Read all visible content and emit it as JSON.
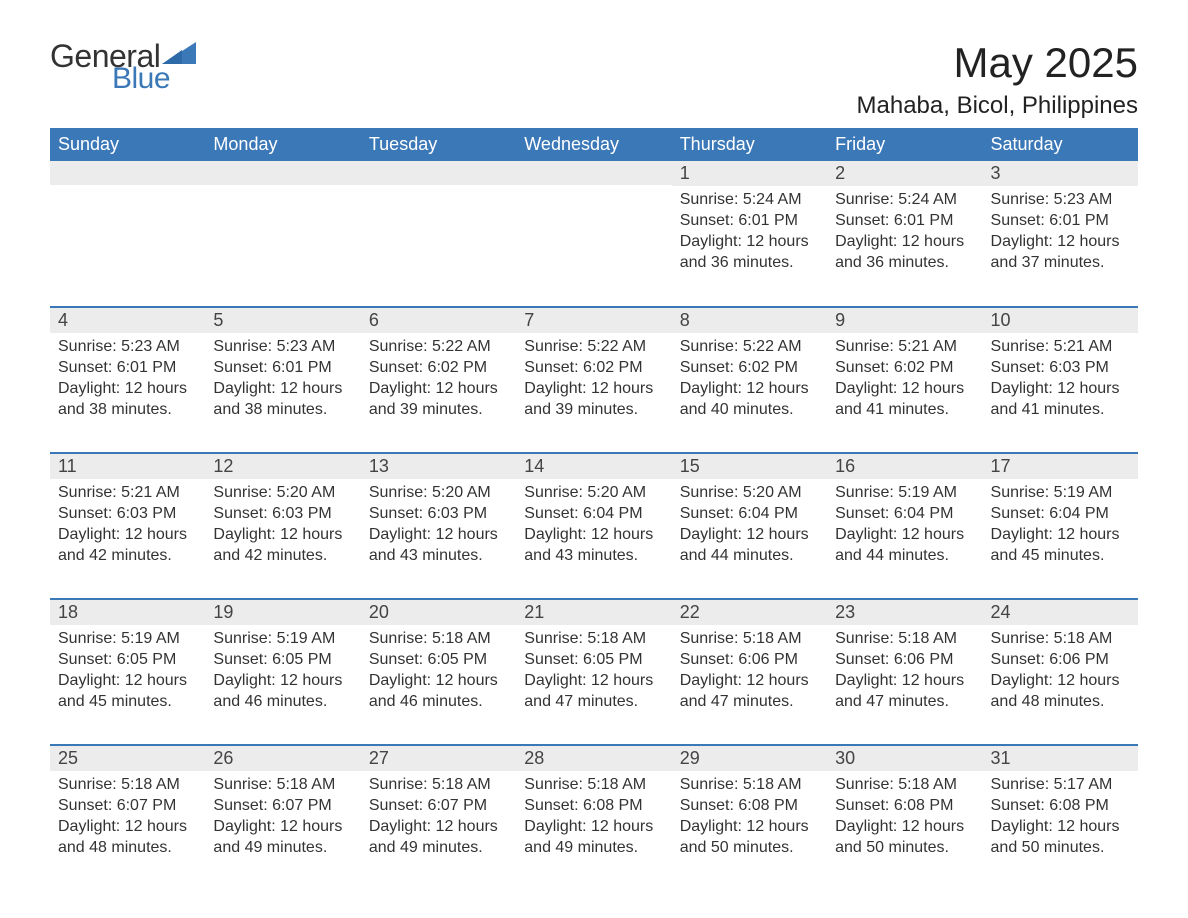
{
  "logo": {
    "text_general": "General",
    "text_blue": "Blue",
    "shape_color": "#3b78b8"
  },
  "title": "May 2025",
  "location": "Mahaba, Bicol, Philippines",
  "colors": {
    "header_bg": "#3b78b8",
    "header_text": "#ffffff",
    "daynum_bg": "#ececec",
    "body_text": "#333333",
    "rule": "#3b78b8"
  },
  "weekdays": [
    "Sunday",
    "Monday",
    "Tuesday",
    "Wednesday",
    "Thursday",
    "Friday",
    "Saturday"
  ],
  "weeks": [
    [
      null,
      null,
      null,
      null,
      {
        "day": "1",
        "sunrise": "Sunrise: 5:24 AM",
        "sunset": "Sunset: 6:01 PM",
        "daylight": "Daylight: 12 hours and 36 minutes."
      },
      {
        "day": "2",
        "sunrise": "Sunrise: 5:24 AM",
        "sunset": "Sunset: 6:01 PM",
        "daylight": "Daylight: 12 hours and 36 minutes."
      },
      {
        "day": "3",
        "sunrise": "Sunrise: 5:23 AM",
        "sunset": "Sunset: 6:01 PM",
        "daylight": "Daylight: 12 hours and 37 minutes."
      }
    ],
    [
      {
        "day": "4",
        "sunrise": "Sunrise: 5:23 AM",
        "sunset": "Sunset: 6:01 PM",
        "daylight": "Daylight: 12 hours and 38 minutes."
      },
      {
        "day": "5",
        "sunrise": "Sunrise: 5:23 AM",
        "sunset": "Sunset: 6:01 PM",
        "daylight": "Daylight: 12 hours and 38 minutes."
      },
      {
        "day": "6",
        "sunrise": "Sunrise: 5:22 AM",
        "sunset": "Sunset: 6:02 PM",
        "daylight": "Daylight: 12 hours and 39 minutes."
      },
      {
        "day": "7",
        "sunrise": "Sunrise: 5:22 AM",
        "sunset": "Sunset: 6:02 PM",
        "daylight": "Daylight: 12 hours and 39 minutes."
      },
      {
        "day": "8",
        "sunrise": "Sunrise: 5:22 AM",
        "sunset": "Sunset: 6:02 PM",
        "daylight": "Daylight: 12 hours and 40 minutes."
      },
      {
        "day": "9",
        "sunrise": "Sunrise: 5:21 AM",
        "sunset": "Sunset: 6:02 PM",
        "daylight": "Daylight: 12 hours and 41 minutes."
      },
      {
        "day": "10",
        "sunrise": "Sunrise: 5:21 AM",
        "sunset": "Sunset: 6:03 PM",
        "daylight": "Daylight: 12 hours and 41 minutes."
      }
    ],
    [
      {
        "day": "11",
        "sunrise": "Sunrise: 5:21 AM",
        "sunset": "Sunset: 6:03 PM",
        "daylight": "Daylight: 12 hours and 42 minutes."
      },
      {
        "day": "12",
        "sunrise": "Sunrise: 5:20 AM",
        "sunset": "Sunset: 6:03 PM",
        "daylight": "Daylight: 12 hours and 42 minutes."
      },
      {
        "day": "13",
        "sunrise": "Sunrise: 5:20 AM",
        "sunset": "Sunset: 6:03 PM",
        "daylight": "Daylight: 12 hours and 43 minutes."
      },
      {
        "day": "14",
        "sunrise": "Sunrise: 5:20 AM",
        "sunset": "Sunset: 6:04 PM",
        "daylight": "Daylight: 12 hours and 43 minutes."
      },
      {
        "day": "15",
        "sunrise": "Sunrise: 5:20 AM",
        "sunset": "Sunset: 6:04 PM",
        "daylight": "Daylight: 12 hours and 44 minutes."
      },
      {
        "day": "16",
        "sunrise": "Sunrise: 5:19 AM",
        "sunset": "Sunset: 6:04 PM",
        "daylight": "Daylight: 12 hours and 44 minutes."
      },
      {
        "day": "17",
        "sunrise": "Sunrise: 5:19 AM",
        "sunset": "Sunset: 6:04 PM",
        "daylight": "Daylight: 12 hours and 45 minutes."
      }
    ],
    [
      {
        "day": "18",
        "sunrise": "Sunrise: 5:19 AM",
        "sunset": "Sunset: 6:05 PM",
        "daylight": "Daylight: 12 hours and 45 minutes."
      },
      {
        "day": "19",
        "sunrise": "Sunrise: 5:19 AM",
        "sunset": "Sunset: 6:05 PM",
        "daylight": "Daylight: 12 hours and 46 minutes."
      },
      {
        "day": "20",
        "sunrise": "Sunrise: 5:18 AM",
        "sunset": "Sunset: 6:05 PM",
        "daylight": "Daylight: 12 hours and 46 minutes."
      },
      {
        "day": "21",
        "sunrise": "Sunrise: 5:18 AM",
        "sunset": "Sunset: 6:05 PM",
        "daylight": "Daylight: 12 hours and 47 minutes."
      },
      {
        "day": "22",
        "sunrise": "Sunrise: 5:18 AM",
        "sunset": "Sunset: 6:06 PM",
        "daylight": "Daylight: 12 hours and 47 minutes."
      },
      {
        "day": "23",
        "sunrise": "Sunrise: 5:18 AM",
        "sunset": "Sunset: 6:06 PM",
        "daylight": "Daylight: 12 hours and 47 minutes."
      },
      {
        "day": "24",
        "sunrise": "Sunrise: 5:18 AM",
        "sunset": "Sunset: 6:06 PM",
        "daylight": "Daylight: 12 hours and 48 minutes."
      }
    ],
    [
      {
        "day": "25",
        "sunrise": "Sunrise: 5:18 AM",
        "sunset": "Sunset: 6:07 PM",
        "daylight": "Daylight: 12 hours and 48 minutes."
      },
      {
        "day": "26",
        "sunrise": "Sunrise: 5:18 AM",
        "sunset": "Sunset: 6:07 PM",
        "daylight": "Daylight: 12 hours and 49 minutes."
      },
      {
        "day": "27",
        "sunrise": "Sunrise: 5:18 AM",
        "sunset": "Sunset: 6:07 PM",
        "daylight": "Daylight: 12 hours and 49 minutes."
      },
      {
        "day": "28",
        "sunrise": "Sunrise: 5:18 AM",
        "sunset": "Sunset: 6:08 PM",
        "daylight": "Daylight: 12 hours and 49 minutes."
      },
      {
        "day": "29",
        "sunrise": "Sunrise: 5:18 AM",
        "sunset": "Sunset: 6:08 PM",
        "daylight": "Daylight: 12 hours and 50 minutes."
      },
      {
        "day": "30",
        "sunrise": "Sunrise: 5:18 AM",
        "sunset": "Sunset: 6:08 PM",
        "daylight": "Daylight: 12 hours and 50 minutes."
      },
      {
        "day": "31",
        "sunrise": "Sunrise: 5:17 AM",
        "sunset": "Sunset: 6:08 PM",
        "daylight": "Daylight: 12 hours and 50 minutes."
      }
    ]
  ]
}
